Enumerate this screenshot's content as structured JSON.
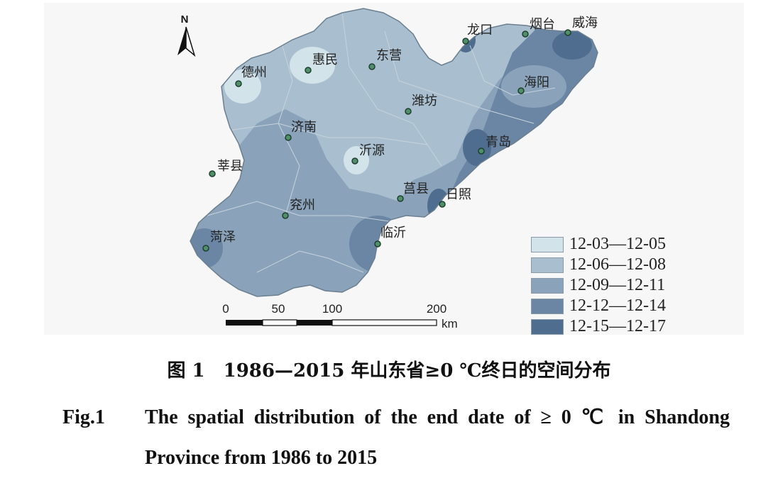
{
  "map": {
    "north_arrow": {
      "label": "N",
      "icon": "north-arrow-icon"
    },
    "cities": [
      {
        "name": "德州"
      },
      {
        "name": "惠民"
      },
      {
        "name": "东营"
      },
      {
        "name": "龙口"
      },
      {
        "name": "烟台"
      },
      {
        "name": "威海"
      },
      {
        "name": "海阳"
      },
      {
        "name": "潍坊"
      },
      {
        "name": "济南"
      },
      {
        "name": "沂源"
      },
      {
        "name": "青岛"
      },
      {
        "name": "莘县"
      },
      {
        "name": "莒县"
      },
      {
        "name": "日照"
      },
      {
        "name": "兖州"
      },
      {
        "name": "临沂"
      },
      {
        "name": "菏泽"
      }
    ],
    "scale_bar": {
      "ticks": [
        "0",
        "50",
        "100",
        "200"
      ],
      "unit": "km"
    },
    "legend": [
      {
        "label": "12-03—12-05",
        "color": "#d3e3ea"
      },
      {
        "label": "12-06—12-08",
        "color": "#a9bfcf"
      },
      {
        "label": "12-09—12-11",
        "color": "#8aa3bb"
      },
      {
        "label": "12-12—12-14",
        "color": "#6a86a4"
      },
      {
        "label": "12-15—12-17",
        "color": "#4f6d8f"
      }
    ]
  },
  "caption": {
    "cn": "图 1　1986—2015 年山东省≥0 ℃终日的空间分布",
    "en_label": "Fig.1",
    "en_text": "The spatial distribution of the end date of ≥ 0 ℃ in Shandong Province from 1986 to 2015"
  }
}
